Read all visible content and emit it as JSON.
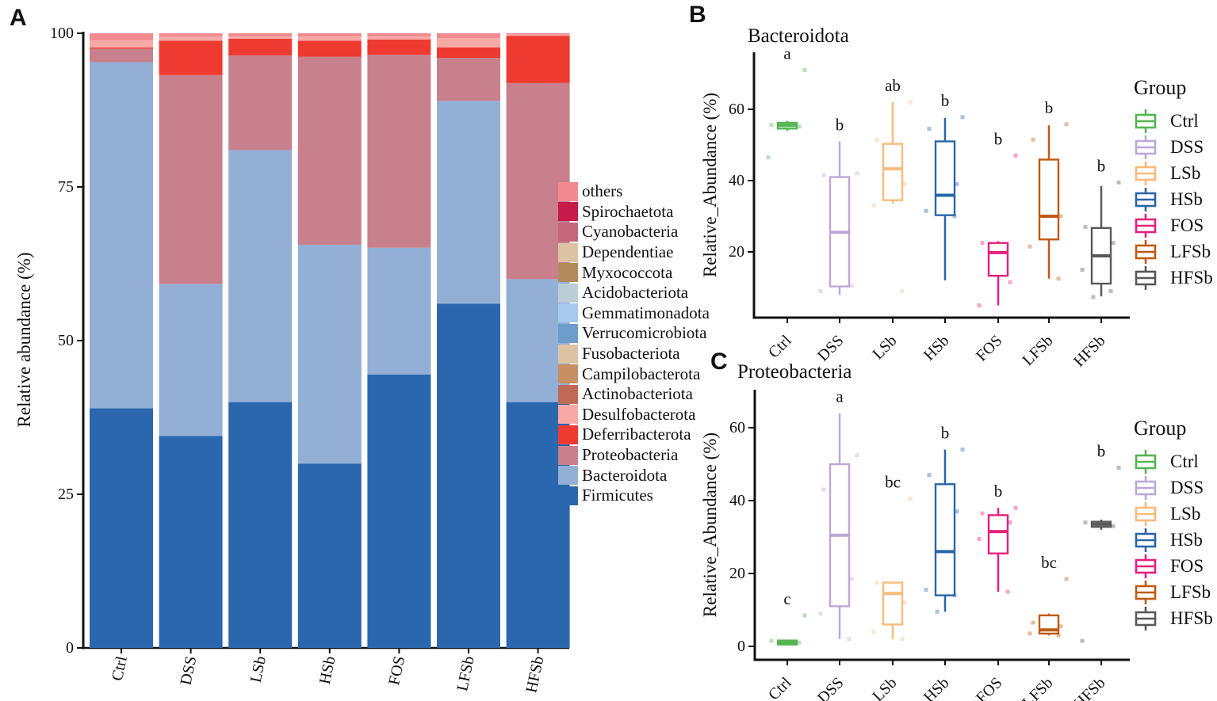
{
  "panels": {
    "a": {
      "label": "A"
    },
    "b": {
      "label": "B"
    },
    "c": {
      "label": "C"
    }
  },
  "chart_data": [
    {
      "type": "bar",
      "stacked": true,
      "panel": "A",
      "ylabel": "Relative abundance (%)",
      "ylim": [
        0,
        100
      ],
      "yticks": [
        0,
        25,
        50,
        75,
        100
      ],
      "grid": false,
      "categories": [
        "Ctrl",
        "DSS",
        "LSb",
        "HSb",
        "FOS",
        "LFSb",
        "HFSb"
      ],
      "series": [
        {
          "name": "Firmicutes",
          "color": "#2B67AE",
          "values": [
            39.0,
            34.5,
            40.0,
            30.0,
            44.5,
            56.0,
            40.0
          ]
        },
        {
          "name": "Bacteroidota",
          "color": "#93AFD5",
          "values": [
            56.3,
            24.7,
            41.0,
            35.6,
            20.6,
            33.0,
            20.0
          ]
        },
        {
          "name": "Proteobacteria",
          "color": "#C8808D",
          "values": [
            2.2,
            34.0,
            15.4,
            30.6,
            31.4,
            7.0,
            31.9
          ]
        },
        {
          "name": "Deferribacterota",
          "color": "#EE3A31",
          "values": [
            0.2,
            5.6,
            2.7,
            2.6,
            2.5,
            1.7,
            7.7
          ]
        },
        {
          "name": "Desulfobacterota",
          "color": "#F7A9A6",
          "values": [
            1.2,
            0.6,
            0.4,
            0.7,
            0.5,
            1.5,
            0.2
          ]
        },
        {
          "name": "others",
          "color": "#F28A90",
          "values": [
            1.1,
            0.6,
            0.5,
            0.5,
            0.5,
            0.8,
            0.2
          ]
        }
      ],
      "legend_position": "right",
      "legend": [
        {
          "label": "others",
          "color": "#F28A90"
        },
        {
          "label": "Spirochaetota",
          "color": "#C51A4A"
        },
        {
          "label": "Cyanobacteria",
          "color": "#C4677B"
        },
        {
          "label": "Dependentiae",
          "color": "#DCC3A4"
        },
        {
          "label": "Myxococcota",
          "color": "#B28B5C"
        },
        {
          "label": "Acidobacteriota",
          "color": "#BDCDD5"
        },
        {
          "label": "Gemmatimonadota",
          "color": "#A6CBEF"
        },
        {
          "label": "Verrucomicrobiota",
          "color": "#6E9CCB"
        },
        {
          "label": "Fusobacteriota",
          "color": "#DCC3A3"
        },
        {
          "label": "Campilobacterota",
          "color": "#C78F62"
        },
        {
          "label": "Actinobacteriota",
          "color": "#C06A55"
        },
        {
          "label": "Desulfobacterota",
          "color": "#F7A9A6"
        },
        {
          "label": "Deferribacterota",
          "color": "#EE3A31"
        },
        {
          "label": "Proteobacteria",
          "color": "#C8808D"
        },
        {
          "label": "Bacteroidota",
          "color": "#93AFD5"
        },
        {
          "label": "Firmicutes",
          "color": "#2B67AE"
        }
      ]
    },
    {
      "type": "box",
      "panel": "B",
      "title": "Bacteroidota",
      "ylabel": "Relative_Abundance (%)",
      "ylim": [
        0,
        76
      ],
      "yticks": [
        20,
        40,
        60
      ],
      "grid": false,
      "legend_title": "Group",
      "categories": [
        "Ctrl",
        "DSS",
        "LSb",
        "HSb",
        "FOS",
        "LFSb",
        "HFSb"
      ],
      "groups": [
        {
          "name": "Ctrl",
          "color": "#55B554",
          "letter": "a",
          "whisker_low": 54.0,
          "q1": 54.6,
          "median": 55.5,
          "q3": 56.2,
          "whisker_high": 56.8,
          "points": [
            71,
            55.6,
            55.2,
            46.5
          ]
        },
        {
          "name": "DSS",
          "color": "#BCA8D8",
          "letter": "b",
          "whisker_low": 8.0,
          "q1": 10.3,
          "median": 25.5,
          "q3": 41.0,
          "whisker_high": 51.0,
          "points": [
            42,
            41.5,
            10.5,
            9
          ]
        },
        {
          "name": "LSb",
          "color": "#FBBB7C",
          "letter": "ab",
          "whisker_low": 33.5,
          "q1": 34.5,
          "median": 43.3,
          "q3": 50.3,
          "whisker_high": 62.0,
          "points": [
            62,
            51.5,
            39,
            33,
            9
          ]
        },
        {
          "name": "HSb",
          "color": "#2A66A8",
          "letter": "b",
          "whisker_low": 12.0,
          "q1": 30.3,
          "median": 35.9,
          "q3": 51.0,
          "whisker_high": 57.6,
          "points": [
            57.8,
            54.5,
            39,
            31.5,
            30
          ]
        },
        {
          "name": "FOS",
          "color": "#E3217E",
          "letter": "b",
          "whisker_low": 5.0,
          "q1": 13.3,
          "median": 19.8,
          "q3": 22.5,
          "whisker_high": 23.0,
          "points": [
            47,
            22.5,
            11.5,
            5
          ]
        },
        {
          "name": "LFSb",
          "color": "#C05A14",
          "letter": "b",
          "whisker_low": 12.5,
          "q1": 23.5,
          "median": 30.0,
          "q3": 45.9,
          "whisker_high": 55.5,
          "points": [
            55.8,
            51.5,
            30,
            21.5,
            12.5
          ]
        },
        {
          "name": "HFSb",
          "color": "#595959",
          "letter": "b",
          "whisker_low": 7.5,
          "q1": 11.1,
          "median": 18.9,
          "q3": 26.7,
          "whisker_high": 38.5,
          "points": [
            39.5,
            27,
            22.5,
            15,
            9,
            7.3
          ]
        }
      ]
    },
    {
      "type": "box",
      "panel": "C",
      "title": "Proteobacteria",
      "ylabel": "Relative_Abundance (%)",
      "ylim": [
        0,
        72
      ],
      "yticks": [
        0,
        20,
        40,
        60
      ],
      "grid": false,
      "legend_title": "Group",
      "categories": [
        "Ctrl",
        "DSS",
        "LSb",
        "HSb",
        "FOS",
        "LFSb",
        "HFSb"
      ],
      "groups": [
        {
          "name": "Ctrl",
          "color": "#55B554",
          "letter": "c",
          "whisker_low": 0.4,
          "q1": 0.5,
          "median": 1.0,
          "q3": 1.6,
          "whisker_high": 1.8,
          "points": [
            8.5,
            1.5,
            1.0
          ]
        },
        {
          "name": "DSS",
          "color": "#BCA8D8",
          "letter": "a",
          "whisker_low": 2.0,
          "q1": 11.0,
          "median": 30.5,
          "q3": 50.0,
          "whisker_high": 64.0,
          "points": [
            52.5,
            43,
            18.5,
            9,
            2
          ]
        },
        {
          "name": "LSb",
          "color": "#FBBB7C",
          "letter": "bc",
          "whisker_low": 2.0,
          "q1": 6.0,
          "median": 14.5,
          "q3": 17.5,
          "whisker_high": 17.8,
          "points": [
            40.5,
            17.5,
            12,
            4,
            2
          ]
        },
        {
          "name": "HSb",
          "color": "#2A66A8",
          "letter": "b",
          "whisker_low": 9.5,
          "q1": 14.0,
          "median": 26.0,
          "q3": 44.5,
          "whisker_high": 54.0,
          "points": [
            54,
            47,
            37,
            15.5,
            14,
            9.5
          ]
        },
        {
          "name": "FOS",
          "color": "#E3217E",
          "letter": "b",
          "whisker_low": 15.0,
          "q1": 25.5,
          "median": 31.5,
          "q3": 36.0,
          "whisker_high": 38.0,
          "points": [
            38,
            36.5,
            34,
            29.5,
            15
          ]
        },
        {
          "name": "LFSb",
          "color": "#C05A14",
          "letter": "bc",
          "whisker_low": 3.0,
          "q1": 3.5,
          "median": 4.5,
          "q3": 8.5,
          "whisker_high": 9.0,
          "points": [
            18.5,
            6.5,
            5.5,
            3.5,
            3
          ]
        },
        {
          "name": "HFSb",
          "color": "#595959",
          "letter": "b",
          "whisker_low": 32.0,
          "q1": 32.8,
          "median": 33.5,
          "q3": 34.2,
          "whisker_high": 34.8,
          "points": [
            49,
            34,
            33,
            1.5
          ]
        }
      ]
    }
  ]
}
